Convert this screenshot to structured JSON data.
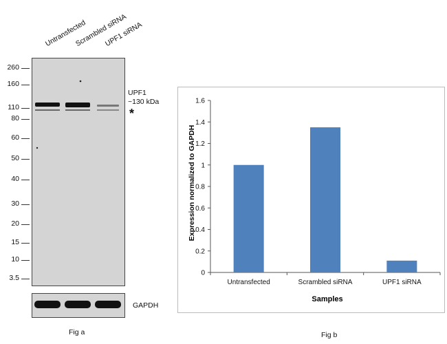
{
  "fig_a": {
    "lanes": [
      "Untransfected",
      "Scrambled siRNA",
      "UPF1  siRNA"
    ],
    "markers": [
      "260",
      "160",
      "110",
      "80",
      "60",
      "50",
      "40",
      "30",
      "20",
      "15",
      "10",
      "3.5"
    ],
    "band_label_line1": "UPF1",
    "band_label_line2": "~130 kDa",
    "asterisk": "*",
    "loading_label": "GAPDH",
    "caption": "Fig a"
  },
  "fig_b": {
    "caption": "Fig b"
  },
  "chart_data": {
    "type": "bar",
    "categories": [
      "Untransfected",
      "Scrambled siRNA",
      "UPF1 siRNA"
    ],
    "values": [
      1.0,
      1.35,
      0.11
    ],
    "ylabel": "Expression normalized to GAPDH",
    "xlabel": "Samples",
    "ylim": [
      0,
      1.6
    ],
    "yticks": [
      "0",
      "0.2",
      "0.4",
      "0.6",
      "0.8",
      "1",
      "1.2",
      "1.4",
      "1.6"
    ],
    "bar_color": "#4f81bd",
    "grid": false
  }
}
